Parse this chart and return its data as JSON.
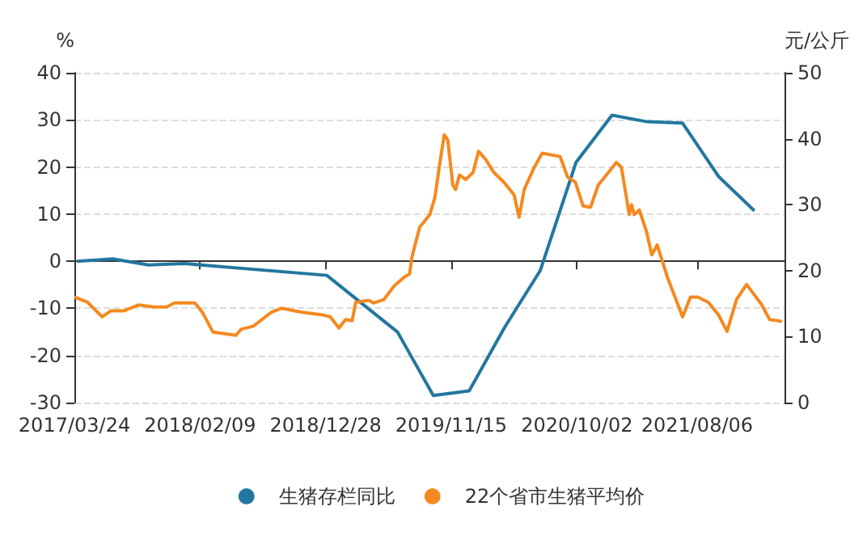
{
  "chart_data": {
    "type": "line",
    "xlim": [
      "2017-03-24",
      "2022-03-18"
    ],
    "xticks": [
      {
        "value": "2017-03-24",
        "label": "2017/03/24"
      },
      {
        "value": "2018-02-09",
        "label": "2018/02/09"
      },
      {
        "value": "2018-12-28",
        "label": "2018/12/28"
      },
      {
        "value": "2019-11-15",
        "label": "2019/11/15"
      },
      {
        "value": "2020-10-02",
        "label": "2020/10/02"
      },
      {
        "value": "2021-08-06",
        "label": "2021/08/06"
      }
    ],
    "ylabel": "%",
    "y2label": "元/公斤",
    "ylim": [
      -30,
      40
    ],
    "yticks": [
      -30,
      -20,
      -10,
      0,
      10,
      20,
      30,
      40
    ],
    "y2lim": [
      0,
      50
    ],
    "y2ticks": [
      0,
      10,
      20,
      30,
      40,
      50
    ],
    "grid": "y",
    "legend": "bottom",
    "marker": "none",
    "line_style": "solid",
    "series": [
      {
        "name": "生猪存栏同比",
        "color": "#23779f",
        "x": [
          "2017-03-31",
          "2017-06-30",
          "2017-09-30",
          "2017-12-31",
          "2018-12-31",
          "2019-06-30",
          "2019-09-30",
          "2019-12-31",
          "2020-03-31",
          "2020-06-30",
          "2020-09-30",
          "2020-12-31",
          "2021-03-31",
          "2021-06-30",
          "2021-09-30",
          "2021-12-31"
        ],
        "values": [
          0,
          0.5,
          -0.8,
          -0.5,
          -3,
          -15,
          -28.5,
          -27.5,
          -14,
          -2,
          21,
          31,
          29.6,
          29.3,
          18,
          10.7
        ]
      },
      {
        "name": "22个省市生猪平均价",
        "color": "#f5891f",
        "axis": "y2",
        "x": [
          "2017-03-24",
          "2017-04-27",
          "2017-06-03",
          "2017-06-25",
          "2017-07-28",
          "2017-09-05",
          "2017-10-14",
          "2017-11-16",
          "2017-12-05",
          "2018-01-27",
          "2018-02-16",
          "2018-03-14",
          "2018-05-12",
          "2018-05-25",
          "2018-06-26",
          "2018-08-11",
          "2018-09-06",
          "2018-10-09",
          "2018-10-29",
          "2018-12-20",
          "2019-01-09",
          "2019-01-31",
          "2019-02-17",
          "2019-03-06",
          "2019-03-15",
          "2019-04-17",
          "2019-04-30",
          "2019-05-26",
          "2019-06-22",
          "2019-07-17",
          "2019-07-31",
          "2019-08-06",
          "2019-08-26",
          "2019-09-21",
          "2019-10-04",
          "2019-10-17",
          "2019-10-28",
          "2019-11-06",
          "2019-11-19",
          "2019-11-26",
          "2019-12-06",
          "2019-12-22",
          "2020-01-10",
          "2020-01-24",
          "2020-02-12",
          "2020-03-03",
          "2020-03-29",
          "2020-04-24",
          "2020-05-07",
          "2020-05-20",
          "2020-06-15",
          "2020-07-05",
          "2020-07-25",
          "2020-08-20",
          "2020-09-08",
          "2020-09-28",
          "2020-10-18",
          "2020-11-06",
          "2020-11-26",
          "2020-12-22",
          "2021-01-11",
          "2021-01-24",
          "2021-02-06",
          "2021-02-13",
          "2021-02-19",
          "2021-02-26",
          "2021-03-11",
          "2021-03-30",
          "2021-04-12",
          "2021-04-26",
          "2021-05-22",
          "2021-06-30",
          "2021-07-20",
          "2021-08-08",
          "2021-09-04",
          "2021-09-30",
          "2021-10-22",
          "2021-11-15",
          "2021-12-11",
          "2021-12-30",
          "2022-01-19",
          "2022-02-08",
          "2022-03-12"
        ],
        "values": [
          16.0,
          15.2,
          13.0,
          13.9,
          13.9,
          14.8,
          14.5,
          14.5,
          15.1,
          15.1,
          13.6,
          10.7,
          10.2,
          11.1,
          11.6,
          13.7,
          14.3,
          13.9,
          13.7,
          13.3,
          13.0,
          11.3,
          12.6,
          12.4,
          15.2,
          15.5,
          15.1,
          15.6,
          17.7,
          19.0,
          19.5,
          22.0,
          26.6,
          28.5,
          31.1,
          36.4,
          40.6,
          39.8,
          33.0,
          32.3,
          34.5,
          33.8,
          34.9,
          38.1,
          36.8,
          34.9,
          33.4,
          31.5,
          28.1,
          32.3,
          35.7,
          37.8,
          37.6,
          37.3,
          34.2,
          33.4,
          29.8,
          29.6,
          33.0,
          34.9,
          36.4,
          35.7,
          31.1,
          28.5,
          30.0,
          28.5,
          29.2,
          25.8,
          22.4,
          23.9,
          19.0,
          13.0,
          16.0,
          16.0,
          15.2,
          13.3,
          10.8,
          15.6,
          17.9,
          16.4,
          14.8,
          12.6,
          12.3
        ]
      }
    ]
  }
}
